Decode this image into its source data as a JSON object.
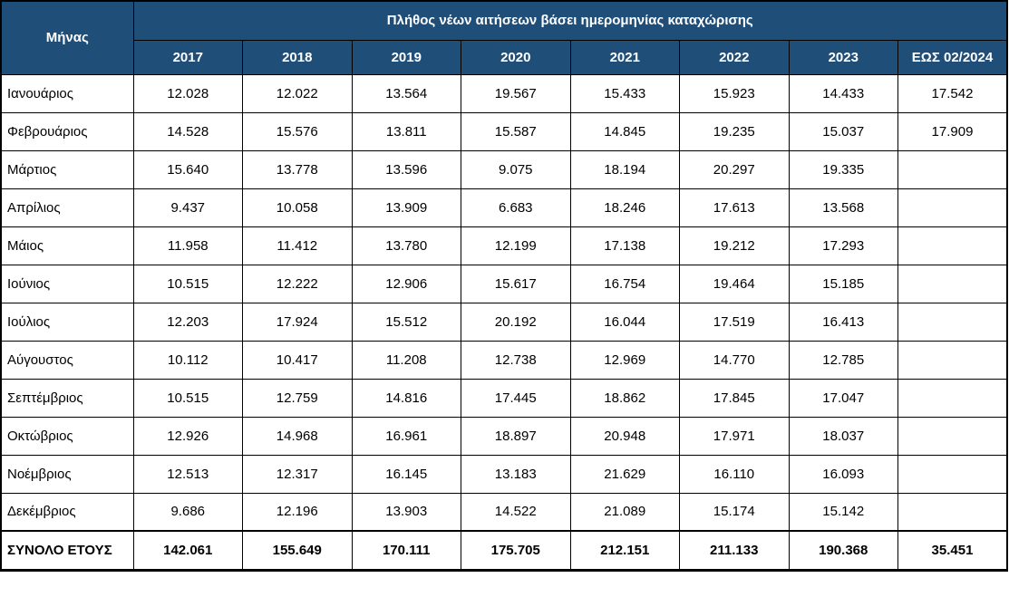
{
  "chart_data": {
    "type": "table",
    "title": "Πλήθος νέων αιτήσεων βάσει ημερομηνίας καταχώρισης",
    "corner_label": "Μήνας",
    "columns": [
      "2017",
      "2018",
      "2019",
      "2020",
      "2021",
      "2022",
      "2023",
      "ΕΩΣ 02/2024"
    ],
    "rows": [
      {
        "month": "Ιανουάριος",
        "values": [
          12028,
          12022,
          13564,
          19567,
          15433,
          15923,
          14433,
          17542
        ]
      },
      {
        "month": "Φεβρουάριος",
        "values": [
          14528,
          15576,
          13811,
          15587,
          14845,
          19235,
          15037,
          17909
        ]
      },
      {
        "month": "Μάρτιος",
        "values": [
          15640,
          13778,
          13596,
          9075,
          18194,
          20297,
          19335,
          null
        ]
      },
      {
        "month": "Απρίλιος",
        "values": [
          9437,
          10058,
          13909,
          6683,
          18246,
          17613,
          13568,
          null
        ]
      },
      {
        "month": "Μάιος",
        "values": [
          11958,
          11412,
          13780,
          12199,
          17138,
          19212,
          17293,
          null
        ]
      },
      {
        "month": "Ιούνιος",
        "values": [
          10515,
          12222,
          12906,
          15617,
          16754,
          19464,
          15185,
          null
        ]
      },
      {
        "month": "Ιούλιος",
        "values": [
          12203,
          17924,
          15512,
          20192,
          16044,
          17519,
          16413,
          null
        ]
      },
      {
        "month": "Αύγουστος",
        "values": [
          10112,
          10417,
          11208,
          12738,
          12969,
          14770,
          12785,
          null
        ]
      },
      {
        "month": "Σεπτέμβριος",
        "values": [
          10515,
          12759,
          14816,
          17445,
          18862,
          17845,
          17047,
          null
        ]
      },
      {
        "month": "Οκτώβριος",
        "values": [
          12926,
          14968,
          16961,
          18897,
          20948,
          17971,
          18037,
          null
        ]
      },
      {
        "month": "Νοέμβριος",
        "values": [
          12513,
          12317,
          16145,
          13183,
          21629,
          16110,
          16093,
          null
        ]
      },
      {
        "month": "Δεκέμβριος",
        "values": [
          9686,
          12196,
          13903,
          14522,
          21089,
          15174,
          15142,
          null
        ]
      }
    ],
    "total_row": {
      "label": "ΣΥΝΟΛΟ ΕΤΟΥΣ",
      "values": [
        142061,
        155649,
        170111,
        175705,
        212151,
        211133,
        190368,
        35451
      ]
    },
    "number_format": "thousands-separator-dot",
    "layout": {
      "grid": true,
      "header_bg": "#1F4E79",
      "header_text_color": "#FFFFFF",
      "body_text_color": "#000000",
      "border_color": "#000000"
    }
  }
}
